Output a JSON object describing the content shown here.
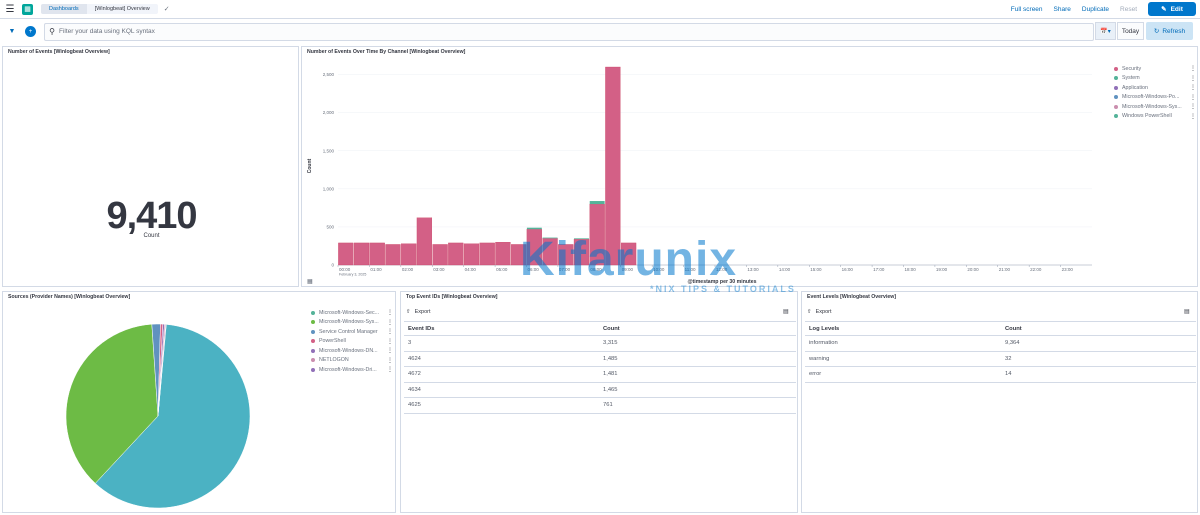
{
  "topbar": {
    "breadcrumbs": [
      "Dashboards",
      "[Winlogbeat] Overview"
    ],
    "full_screen": "Full screen",
    "share": "Share",
    "duplicate": "Duplicate",
    "reset": "Reset",
    "edit": "Edit"
  },
  "querybar": {
    "placeholder": "Filter your data using KQL syntax",
    "date_label": "Today",
    "refresh": "Refresh"
  },
  "panels": {
    "metric": {
      "title": "Number of Events [Winlogbeat Overview]",
      "value": "9,410",
      "label": "Count"
    },
    "timeline": {
      "title": "Number of Events Over Time By Channel [Winlogbeat Overview]",
      "legend": [
        {
          "name": "Security",
          "color": "#d36086"
        },
        {
          "name": "System",
          "color": "#54b399"
        },
        {
          "name": "Application",
          "color": "#9170b8"
        },
        {
          "name": "Microsoft-Windows-Po...",
          "color": "#6092c0"
        },
        {
          "name": "Microsoft-Windows-Sys...",
          "color": "#ca8eae"
        },
        {
          "name": "Windows PowerShell",
          "color": "#54b399"
        }
      ]
    },
    "sources": {
      "title": "Sources (Provider Names) [Winlogbeat Overview]",
      "legend": [
        {
          "name": "Microsoft-Windows-Sec...",
          "color": "#54b399"
        },
        {
          "name": "Microsoft-Windows-Sys...",
          "color": "#6dbb45"
        },
        {
          "name": "Service Control Manager",
          "color": "#6092c0"
        },
        {
          "name": "PowerShell",
          "color": "#d36086"
        },
        {
          "name": "Microsoft-Windows-DN...",
          "color": "#9170b8"
        },
        {
          "name": "NETLOGON",
          "color": "#ca8eae"
        },
        {
          "name": "Microsoft-Windows-Dri...",
          "color": "#9170b8"
        }
      ]
    },
    "top_event_ids": {
      "title": "Top Event IDs [Winlogbeat Overview]",
      "export": "Export",
      "columns": [
        "Event IDs",
        "Count"
      ],
      "rows": [
        [
          "3",
          "3,315"
        ],
        [
          "4624",
          "1,485"
        ],
        [
          "4672",
          "1,481"
        ],
        [
          "4634",
          "1,465"
        ],
        [
          "4625",
          "761"
        ]
      ]
    },
    "event_levels": {
      "title": "Event Levels [Winlogbeat Overview]",
      "export": "Export",
      "columns": [
        "Log Levels",
        "Count"
      ],
      "rows": [
        [
          "information",
          "9,364"
        ],
        [
          "warning",
          "32"
        ],
        [
          "error",
          "14"
        ]
      ]
    }
  },
  "watermark": {
    "brand": "Kifarunix",
    "tagline": "*NIX TIPS & TUTORIALS"
  },
  "chart_data": [
    {
      "type": "bar",
      "stacked": true,
      "title": "Number of Events Over Time By Channel [Winlogbeat Overview]",
      "xlabel": "@timestamp per 30 minutes",
      "ylabel": "Count",
      "ylim": [
        0,
        2600
      ],
      "yticks": [
        "0",
        "500",
        "1,000",
        "1,500",
        "2,000",
        "2,500"
      ],
      "xticks": [
        "00:00\nFebruary 3, 2025",
        "01:00",
        "02:00",
        "03:00",
        "04:00",
        "05:00",
        "06:00",
        "07:00",
        "08:00",
        "09:00",
        "10:00",
        "11:00",
        "12:00",
        "13:00",
        "14:00",
        "15:00",
        "16:00",
        "17:00",
        "18:00",
        "19:00",
        "20:00",
        "21:00",
        "22:00",
        "23:00"
      ],
      "categories": [
        "00:00",
        "00:30",
        "01:00",
        "01:30",
        "02:00",
        "02:30",
        "03:00",
        "03:30",
        "04:00",
        "04:30",
        "05:00",
        "05:30",
        "06:00",
        "06:30",
        "07:00",
        "07:30",
        "08:00",
        "08:30",
        "09:00",
        "09:30"
      ],
      "series": [
        {
          "name": "Security",
          "color": "#d36086",
          "values": [
            290,
            290,
            290,
            270,
            280,
            620,
            270,
            290,
            280,
            290,
            300,
            270,
            470,
            350,
            270,
            340,
            800,
            2600,
            290,
            0
          ]
        },
        {
          "name": "System",
          "color": "#54b399",
          "values": [
            0,
            0,
            0,
            0,
            0,
            0,
            0,
            0,
            0,
            0,
            0,
            0,
            20,
            10,
            0,
            10,
            40,
            0,
            0,
            0
          ]
        }
      ],
      "grid": true,
      "legend_position": "top-right"
    },
    {
      "type": "pie",
      "title": "Sources (Provider Names) [Winlogbeat Overview]",
      "labels": [
        "Microsoft-Windows-Sec...",
        "Microsoft-Windows-Sys...",
        "Service Control Manager",
        "PowerShell",
        "Microsoft-Windows-DN...",
        "NETLOGON",
        "Microsoft-Windows-Dri..."
      ],
      "values": [
        60.5,
        37.0,
        1.5,
        0.4,
        0.3,
        0.2,
        0.1
      ],
      "legend_position": "top-right"
    }
  ]
}
